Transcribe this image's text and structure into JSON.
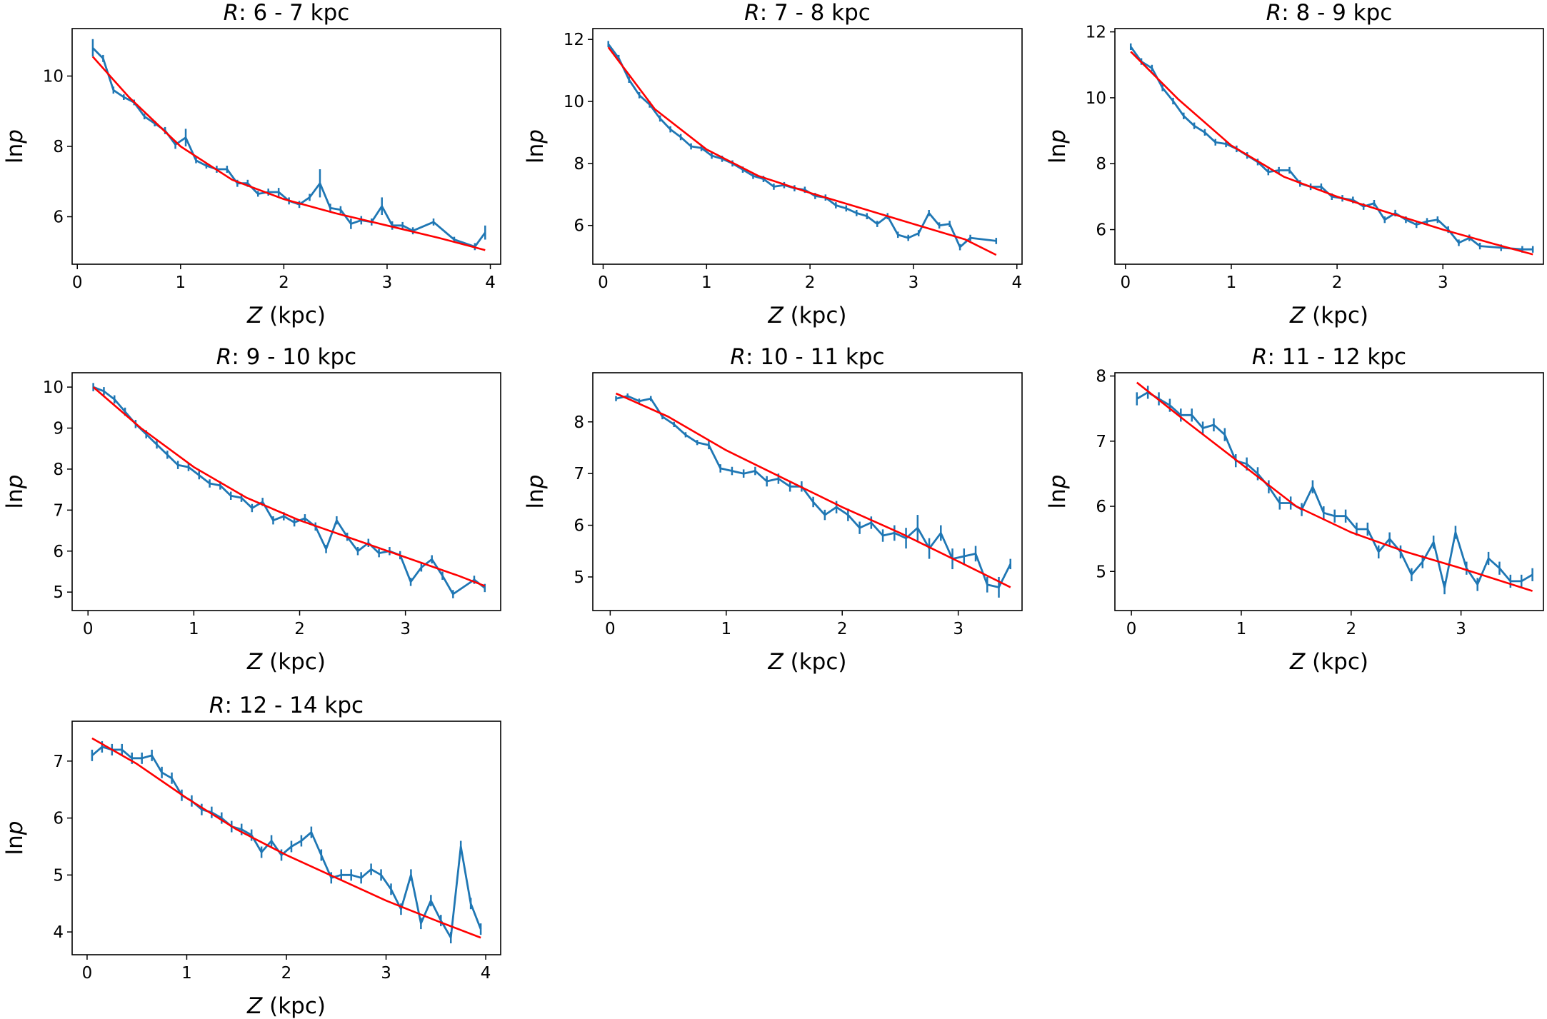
{
  "figure": {
    "background": "#ffffff",
    "model_color": "#ff0000",
    "data_color": "#1f77b4"
  },
  "chart_data": [
    {
      "type": "line",
      "title_var": "R",
      "title_rest": ": 6 - 7 kpc",
      "xlabel_var": "Z",
      "xlabel_rest": " (kpc)",
      "ylabel_prefix": "ln",
      "ylabel_var": "p",
      "xlim": [
        -0.05,
        4.1
      ],
      "ylim": [
        4.65,
        11.35
      ],
      "xticks": [
        0,
        1,
        2,
        3,
        4
      ],
      "yticks": [
        6,
        8,
        10
      ],
      "series": [
        {
          "name": "data",
          "x": [
            0.15,
            0.25,
            0.35,
            0.45,
            0.55,
            0.65,
            0.75,
            0.85,
            0.95,
            1.05,
            1.15,
            1.25,
            1.35,
            1.45,
            1.55,
            1.65,
            1.75,
            1.85,
            1.95,
            2.05,
            2.15,
            2.25,
            2.35,
            2.45,
            2.55,
            2.65,
            2.75,
            2.85,
            2.95,
            3.05,
            3.15,
            3.25,
            3.45,
            3.65,
            3.85,
            3.95
          ],
          "y": [
            10.8,
            10.5,
            9.6,
            9.4,
            9.25,
            8.85,
            8.65,
            8.45,
            8.05,
            8.25,
            7.6,
            7.45,
            7.35,
            7.35,
            6.95,
            6.95,
            6.65,
            6.7,
            6.7,
            6.45,
            6.35,
            6.55,
            6.95,
            6.25,
            6.2,
            5.8,
            5.9,
            5.85,
            6.3,
            5.75,
            5.75,
            5.6,
            5.85,
            5.35,
            5.15,
            5.55
          ],
          "yerr": [
            0.25,
            0.1,
            0.1,
            0.08,
            0.08,
            0.08,
            0.08,
            0.1,
            0.12,
            0.25,
            0.08,
            0.08,
            0.1,
            0.1,
            0.1,
            0.1,
            0.08,
            0.1,
            0.12,
            0.1,
            0.1,
            0.1,
            0.4,
            0.12,
            0.1,
            0.15,
            0.12,
            0.1,
            0.25,
            0.12,
            0.1,
            0.1,
            0.1,
            0.08,
            0.1,
            0.2
          ]
        },
        {
          "name": "model",
          "x": [
            0.15,
            0.5,
            1.0,
            1.5,
            2.0,
            2.5,
            3.0,
            3.5,
            3.95
          ],
          "y": [
            10.55,
            9.4,
            8.0,
            7.05,
            6.5,
            6.1,
            5.75,
            5.4,
            5.05
          ]
        }
      ]
    },
    {
      "type": "line",
      "title_var": "R",
      "title_rest": ": 7 - 8 kpc",
      "xlabel_var": "Z",
      "xlabel_rest": " (kpc)",
      "ylabel_prefix": "ln",
      "ylabel_var": "p",
      "xlim": [
        -0.1,
        4.05
      ],
      "ylim": [
        4.75,
        12.35
      ],
      "xticks": [
        0,
        1,
        2,
        3,
        4
      ],
      "yticks": [
        6,
        8,
        10,
        12
      ],
      "series": [
        {
          "name": "data",
          "x": [
            0.05,
            0.15,
            0.25,
            0.35,
            0.45,
            0.55,
            0.65,
            0.75,
            0.85,
            0.95,
            1.05,
            1.15,
            1.25,
            1.35,
            1.45,
            1.55,
            1.65,
            1.75,
            1.85,
            1.95,
            2.05,
            2.15,
            2.25,
            2.35,
            2.45,
            2.55,
            2.65,
            2.75,
            2.85,
            2.95,
            3.05,
            3.15,
            3.25,
            3.35,
            3.45,
            3.55,
            3.8
          ],
          "y": [
            11.85,
            11.4,
            10.7,
            10.2,
            9.9,
            9.45,
            9.1,
            8.85,
            8.55,
            8.5,
            8.25,
            8.15,
            8.0,
            7.8,
            7.6,
            7.5,
            7.25,
            7.3,
            7.2,
            7.15,
            6.95,
            6.9,
            6.65,
            6.55,
            6.4,
            6.3,
            6.05,
            6.3,
            5.7,
            5.6,
            5.75,
            6.4,
            6.0,
            6.05,
            5.3,
            5.6,
            5.5
          ]
        },
        {
          "name": "model",
          "x": [
            0.05,
            0.5,
            1.0,
            1.5,
            2.0,
            2.5,
            3.0,
            3.5,
            3.8
          ],
          "y": [
            11.75,
            9.75,
            8.45,
            7.6,
            7.05,
            6.55,
            6.05,
            5.55,
            5.05
          ]
        }
      ]
    },
    {
      "type": "line",
      "title_var": "R",
      "title_rest": ": 8 - 9 kpc",
      "xlabel_var": "Z",
      "xlabel_rest": " (kpc)",
      "ylabel_prefix": "ln",
      "ylabel_var": "p",
      "xlim": [
        -0.1,
        3.95
      ],
      "ylim": [
        4.95,
        12.1
      ],
      "xticks": [
        0,
        1,
        2,
        3
      ],
      "yticks": [
        6,
        8,
        10,
        12
      ],
      "series": [
        {
          "name": "data",
          "x": [
            0.05,
            0.15,
            0.25,
            0.35,
            0.45,
            0.55,
            0.65,
            0.75,
            0.85,
            0.95,
            1.05,
            1.15,
            1.25,
            1.35,
            1.45,
            1.55,
            1.65,
            1.75,
            1.85,
            1.95,
            2.05,
            2.15,
            2.25,
            2.35,
            2.45,
            2.55,
            2.65,
            2.75,
            2.85,
            2.95,
            3.05,
            3.15,
            3.25,
            3.35,
            3.55,
            3.75,
            3.85
          ],
          "y": [
            11.55,
            11.1,
            10.9,
            10.3,
            9.9,
            9.45,
            9.15,
            8.95,
            8.65,
            8.6,
            8.45,
            8.25,
            8.05,
            7.75,
            7.8,
            7.8,
            7.4,
            7.3,
            7.3,
            7.0,
            6.95,
            6.9,
            6.7,
            6.8,
            6.3,
            6.5,
            6.3,
            6.15,
            6.25,
            6.3,
            6.0,
            5.6,
            5.75,
            5.5,
            5.45,
            5.4,
            5.4
          ]
        },
        {
          "name": "model",
          "x": [
            0.05,
            0.5,
            1.0,
            1.5,
            2.0,
            2.5,
            3.0,
            3.5,
            3.85
          ],
          "y": [
            11.4,
            9.95,
            8.55,
            7.6,
            7.0,
            6.5,
            6.0,
            5.55,
            5.25
          ]
        }
      ]
    },
    {
      "type": "line",
      "title_var": "R",
      "title_rest": ": 9 - 10 kpc",
      "xlabel_var": "Z",
      "xlabel_rest": " (kpc)",
      "ylabel_prefix": "ln",
      "ylabel_var": "p",
      "xlim": [
        -0.15,
        3.9
      ],
      "ylim": [
        4.55,
        10.35
      ],
      "xticks": [
        0,
        1,
        2,
        3
      ],
      "yticks": [
        5,
        6,
        7,
        8,
        9,
        10
      ],
      "series": [
        {
          "name": "data",
          "x": [
            0.05,
            0.15,
            0.25,
            0.35,
            0.45,
            0.55,
            0.65,
            0.75,
            0.85,
            0.95,
            1.05,
            1.15,
            1.25,
            1.35,
            1.45,
            1.55,
            1.65,
            1.75,
            1.85,
            1.95,
            2.05,
            2.15,
            2.25,
            2.35,
            2.45,
            2.55,
            2.65,
            2.75,
            2.85,
            2.95,
            3.05,
            3.15,
            3.25,
            3.35,
            3.45,
            3.65,
            3.75
          ],
          "y": [
            10.0,
            9.9,
            9.7,
            9.4,
            9.1,
            8.85,
            8.6,
            8.35,
            8.1,
            8.05,
            7.85,
            7.65,
            7.6,
            7.35,
            7.3,
            7.05,
            7.2,
            6.75,
            6.85,
            6.7,
            6.8,
            6.6,
            6.05,
            6.75,
            6.35,
            6.0,
            6.2,
            5.95,
            6.0,
            5.9,
            5.25,
            5.6,
            5.8,
            5.4,
            4.95,
            5.3,
            5.1
          ]
        },
        {
          "name": "model",
          "x": [
            0.05,
            0.5,
            1.0,
            1.5,
            2.0,
            2.5,
            3.0,
            3.5,
            3.75
          ],
          "y": [
            10.0,
            9.0,
            8.05,
            7.3,
            6.75,
            6.3,
            5.85,
            5.4,
            5.15
          ]
        }
      ]
    },
    {
      "type": "line",
      "title_var": "R",
      "title_rest": ": 10 - 11 kpc",
      "xlabel_var": "Z",
      "xlabel_rest": " (kpc)",
      "ylabel_prefix": "ln",
      "ylabel_var": "p",
      "xlim": [
        -0.15,
        3.55
      ],
      "ylim": [
        4.35,
        8.95
      ],
      "xticks": [
        0,
        1,
        2,
        3
      ],
      "yticks": [
        5,
        6,
        7,
        8
      ],
      "series": [
        {
          "name": "data",
          "x": [
            0.05,
            0.15,
            0.25,
            0.35,
            0.45,
            0.55,
            0.65,
            0.75,
            0.85,
            0.95,
            1.05,
            1.15,
            1.25,
            1.35,
            1.45,
            1.55,
            1.65,
            1.75,
            1.85,
            1.95,
            2.05,
            2.15,
            2.25,
            2.35,
            2.45,
            2.55,
            2.65,
            2.75,
            2.85,
            2.95,
            3.05,
            3.15,
            3.25,
            3.35,
            3.45
          ],
          "y": [
            8.45,
            8.5,
            8.4,
            8.45,
            8.1,
            7.95,
            7.75,
            7.6,
            7.55,
            7.1,
            7.05,
            7.0,
            7.05,
            6.85,
            6.9,
            6.75,
            6.75,
            6.45,
            6.2,
            6.35,
            6.2,
            5.95,
            6.05,
            5.8,
            5.85,
            5.75,
            5.95,
            5.55,
            5.85,
            5.35,
            5.4,
            5.45,
            4.85,
            4.8,
            5.25
          ],
          "yerr": [
            0.05,
            0.05,
            0.05,
            0.05,
            0.05,
            0.05,
            0.05,
            0.05,
            0.08,
            0.08,
            0.08,
            0.08,
            0.08,
            0.1,
            0.1,
            0.1,
            0.1,
            0.1,
            0.1,
            0.12,
            0.12,
            0.12,
            0.12,
            0.12,
            0.15,
            0.2,
            0.25,
            0.2,
            0.15,
            0.2,
            0.15,
            0.15,
            0.15,
            0.2,
            0.1
          ]
        },
        {
          "name": "model",
          "x": [
            0.05,
            0.5,
            1.0,
            1.5,
            2.0,
            2.5,
            3.0,
            3.45
          ],
          "y": [
            8.55,
            8.1,
            7.45,
            6.9,
            6.35,
            5.85,
            5.3,
            4.8
          ]
        }
      ]
    },
    {
      "type": "line",
      "title_var": "R",
      "title_rest": ": 11 - 12 kpc",
      "xlabel_var": "Z",
      "xlabel_rest": " (kpc)",
      "ylabel_prefix": "ln",
      "ylabel_var": "p",
      "xlim": [
        -0.15,
        3.75
      ],
      "ylim": [
        4.4,
        8.05
      ],
      "xticks": [
        0,
        1,
        2,
        3
      ],
      "yticks": [
        5,
        6,
        7,
        8
      ],
      "series": [
        {
          "name": "data",
          "x": [
            0.05,
            0.15,
            0.25,
            0.35,
            0.45,
            0.55,
            0.65,
            0.75,
            0.85,
            0.95,
            1.05,
            1.15,
            1.25,
            1.35,
            1.45,
            1.55,
            1.65,
            1.75,
            1.85,
            1.95,
            2.05,
            2.15,
            2.25,
            2.35,
            2.45,
            2.55,
            2.65,
            2.75,
            2.85,
            2.95,
            3.05,
            3.15,
            3.25,
            3.35,
            3.45,
            3.55,
            3.65
          ],
          "y": [
            7.65,
            7.75,
            7.65,
            7.55,
            7.4,
            7.4,
            7.2,
            7.25,
            7.1,
            6.7,
            6.65,
            6.5,
            6.3,
            6.05,
            6.05,
            5.95,
            6.3,
            5.9,
            5.85,
            5.85,
            5.65,
            5.65,
            5.3,
            5.5,
            5.3,
            4.95,
            5.15,
            5.45,
            4.75,
            5.6,
            5.05,
            4.8,
            5.2,
            5.05,
            4.85,
            4.85,
            4.95
          ]
        },
        {
          "name": "model",
          "x": [
            0.05,
            0.5,
            1.0,
            1.5,
            2.0,
            2.5,
            3.0,
            3.65
          ],
          "y": [
            7.9,
            7.3,
            6.65,
            6.0,
            5.6,
            5.3,
            5.05,
            4.7
          ]
        }
      ]
    },
    {
      "type": "line",
      "title_var": "R",
      "title_rest": ": 12 - 14 kpc",
      "xlabel_var": "Z",
      "xlabel_rest": " (kpc)",
      "ylabel_prefix": "ln",
      "ylabel_var": "p",
      "xlim": [
        -0.15,
        4.15
      ],
      "ylim": [
        3.6,
        7.7
      ],
      "xticks": [
        0,
        1,
        2,
        3,
        4
      ],
      "yticks": [
        4,
        5,
        6,
        7
      ],
      "series": [
        {
          "name": "data",
          "x": [
            0.05,
            0.15,
            0.25,
            0.35,
            0.45,
            0.55,
            0.65,
            0.75,
            0.85,
            0.95,
            1.05,
            1.15,
            1.25,
            1.35,
            1.45,
            1.55,
            1.65,
            1.75,
            1.85,
            1.95,
            2.05,
            2.15,
            2.25,
            2.35,
            2.45,
            2.55,
            2.65,
            2.75,
            2.85,
            2.95,
            3.05,
            3.15,
            3.25,
            3.35,
            3.45,
            3.55,
            3.65,
            3.75,
            3.85,
            3.95
          ],
          "y": [
            7.1,
            7.25,
            7.2,
            7.2,
            7.05,
            7.05,
            7.1,
            6.8,
            6.7,
            6.4,
            6.3,
            6.15,
            6.1,
            6.0,
            5.85,
            5.8,
            5.7,
            5.4,
            5.6,
            5.35,
            5.5,
            5.6,
            5.75,
            5.35,
            4.95,
            5.0,
            5.0,
            4.95,
            5.1,
            5.0,
            4.75,
            4.4,
            5.0,
            4.15,
            4.55,
            4.2,
            3.9,
            5.5,
            4.5,
            4.05
          ]
        },
        {
          "name": "model",
          "x": [
            0.05,
            0.5,
            1.0,
            1.5,
            2.0,
            2.5,
            3.0,
            3.5,
            3.95
          ],
          "y": [
            7.4,
            6.95,
            6.35,
            5.8,
            5.35,
            4.95,
            4.55,
            4.2,
            3.9
          ]
        }
      ]
    }
  ]
}
